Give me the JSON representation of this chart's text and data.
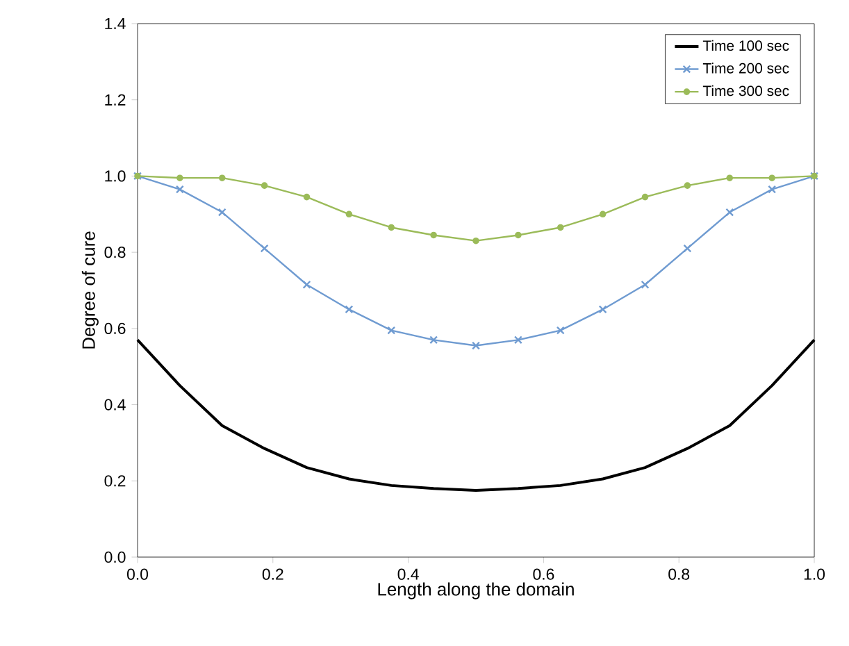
{
  "chart_data": {
    "type": "line",
    "xlabel": "Length along the domain",
    "ylabel": "Degree of cure",
    "x": [
      0,
      0.0625,
      0.125,
      0.1875,
      0.25,
      0.3125,
      0.375,
      0.4375,
      0.5,
      0.5625,
      0.625,
      0.6875,
      0.75,
      0.8125,
      0.875,
      0.9375,
      1
    ],
    "series": [
      {
        "name": "Time 100 sec",
        "color": "#000000",
        "marker": "none",
        "values": [
          0.57,
          0.45,
          0.345,
          0.285,
          0.235,
          0.205,
          0.188,
          0.18,
          0.175,
          0.18,
          0.188,
          0.205,
          0.235,
          0.285,
          0.345,
          0.45,
          0.57
        ]
      },
      {
        "name": "Time 200 sec",
        "color": "#6f9bd1",
        "marker": "cross",
        "values": [
          1.0,
          0.965,
          0.905,
          0.81,
          0.715,
          0.65,
          0.595,
          0.57,
          0.555,
          0.57,
          0.595,
          0.65,
          0.715,
          0.81,
          0.905,
          0.965,
          1.0
        ]
      },
      {
        "name": "Time 300 sec",
        "color": "#9bbb59",
        "marker": "circle",
        "values": [
          1.0,
          0.995,
          0.995,
          0.975,
          0.945,
          0.9,
          0.865,
          0.845,
          0.83,
          0.845,
          0.865,
          0.9,
          0.945,
          0.975,
          0.995,
          0.995,
          1.0
        ]
      }
    ],
    "xlim": [
      0,
      1
    ],
    "ylim": [
      0,
      1.4
    ],
    "xticks": [
      {
        "value": 0,
        "label": "0.0"
      },
      {
        "value": 0.2,
        "label": "0.2"
      },
      {
        "value": 0.4,
        "label": "0.4"
      },
      {
        "value": 0.6,
        "label": "0.6"
      },
      {
        "value": 0.8,
        "label": "0.8"
      },
      {
        "value": 1,
        "label": "1.0"
      }
    ],
    "yticks": [
      {
        "value": 0,
        "label": "0.0"
      },
      {
        "value": 0.2,
        "label": "0.2"
      },
      {
        "value": 0.4,
        "label": "0.4"
      },
      {
        "value": 0.6,
        "label": "0.6"
      },
      {
        "value": 0.8,
        "label": "0.8"
      },
      {
        "value": 1,
        "label": "1.0"
      },
      {
        "value": 1.2,
        "label": "1.2"
      },
      {
        "value": 1.4,
        "label": "1.4"
      }
    ],
    "grid": false,
    "legend": "top right",
    "line_style": "solid"
  }
}
